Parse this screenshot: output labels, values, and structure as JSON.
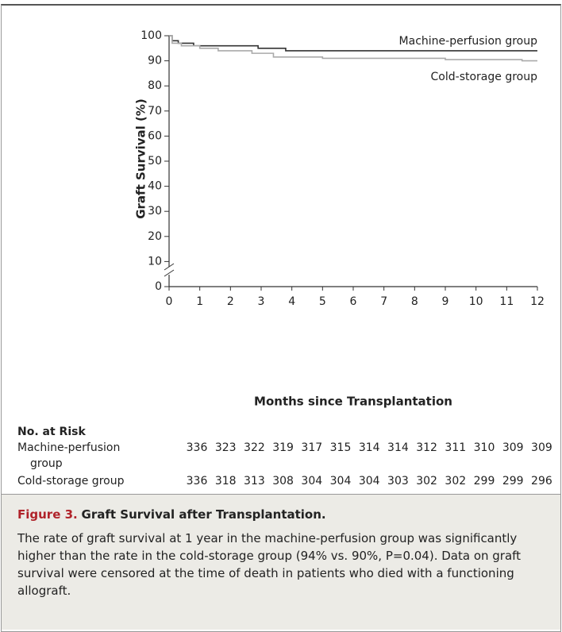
{
  "chart_data": {
    "type": "line",
    "xlabel": "Months since Transplantation",
    "ylabel": "Graft Survival (%)",
    "xlim": [
      0,
      12
    ],
    "xticks": [
      0,
      1,
      2,
      3,
      4,
      5,
      6,
      7,
      8,
      9,
      10,
      11,
      12
    ],
    "ylim": [
      0,
      100
    ],
    "yticks": [
      0,
      10,
      20,
      30,
      40,
      50,
      60,
      70,
      80,
      90,
      100
    ],
    "series": [
      {
        "name": "Machine-perfusion group",
        "color": "#333333",
        "x": [
          0,
          0.1,
          0.1,
          0.3,
          0.3,
          0.8,
          0.8,
          2.9,
          2.9,
          3.8,
          3.8,
          12
        ],
        "values": [
          100,
          100,
          98,
          98,
          97,
          97,
          96,
          96,
          95,
          95,
          94,
          94
        ]
      },
      {
        "name": "Cold-storage group",
        "color": "#aaaaaa",
        "x": [
          0,
          0.1,
          0.1,
          0.4,
          0.4,
          1,
          1,
          1.6,
          1.6,
          2.7,
          2.7,
          3.4,
          3.4,
          5,
          5,
          9,
          9,
          11.5,
          11.5,
          12
        ],
        "values": [
          100,
          100,
          97,
          97,
          96,
          96,
          95,
          95,
          94,
          94,
          93,
          93,
          91.5,
          91.5,
          91,
          91,
          90.5,
          90.5,
          90,
          90
        ]
      }
    ],
    "at_risk": {
      "title": "No. at Risk",
      "rows": [
        {
          "name": "Machine-perfusion group",
          "values": [
            336,
            323,
            322,
            319,
            317,
            315,
            314,
            314,
            312,
            311,
            310,
            309,
            309
          ]
        },
        {
          "name": "Cold-storage group",
          "values": [
            336,
            318,
            313,
            308,
            304,
            304,
            304,
            303,
            302,
            302,
            299,
            299,
            296
          ]
        }
      ]
    }
  },
  "caption": {
    "label": "Figure 3.",
    "title": "Graft Survival after Transplantation.",
    "text": "The rate of graft survival at 1 year in the machine-perfusion group was significantly higher than the rate in the cold-storage group (94% vs. 90%, P=0.04). Data on graft survival were censored at the time of death in patients who died with a functioning allograft."
  }
}
